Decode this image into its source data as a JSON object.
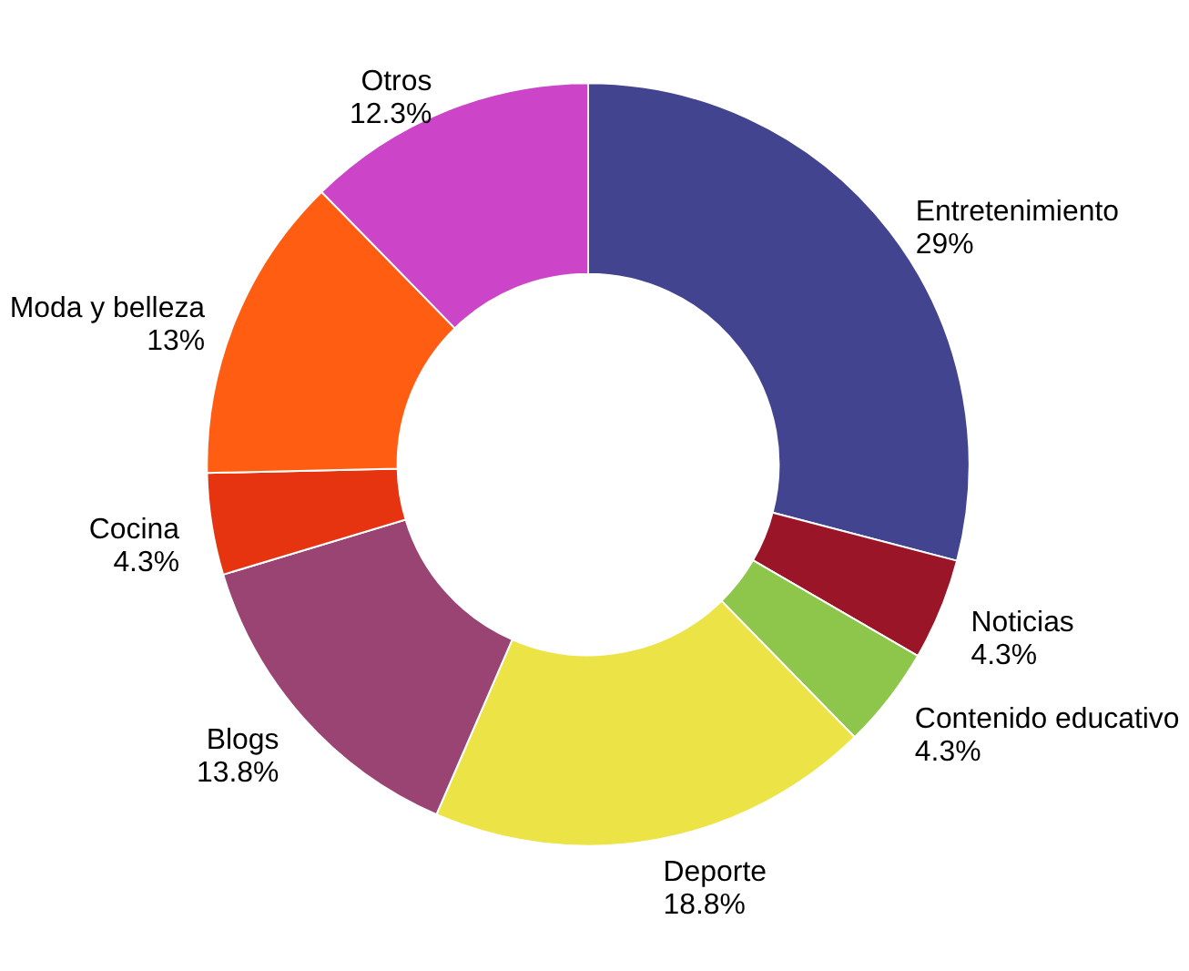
{
  "chart_data": {
    "type": "donut",
    "categories": [
      "Entretenimiento",
      "Noticias",
      "Contenido educativo",
      "Deporte",
      "Blogs",
      "Cocina",
      "Moda y belleza",
      "Otros"
    ],
    "values": [
      29,
      4.3,
      4.3,
      18.8,
      13.8,
      4.3,
      13,
      12.3
    ],
    "value_labels": [
      "29%",
      "4.3%",
      "4.3%",
      "18.8%",
      "13.8%",
      "4.3%",
      "13%",
      "12.3%"
    ],
    "colors": [
      "#43448f",
      "#9b1528",
      "#8dc64b",
      "#ece447",
      "#9a4473",
      "#e5340f",
      "#ff5e12",
      "#cc44c8"
    ],
    "legend": false
  }
}
